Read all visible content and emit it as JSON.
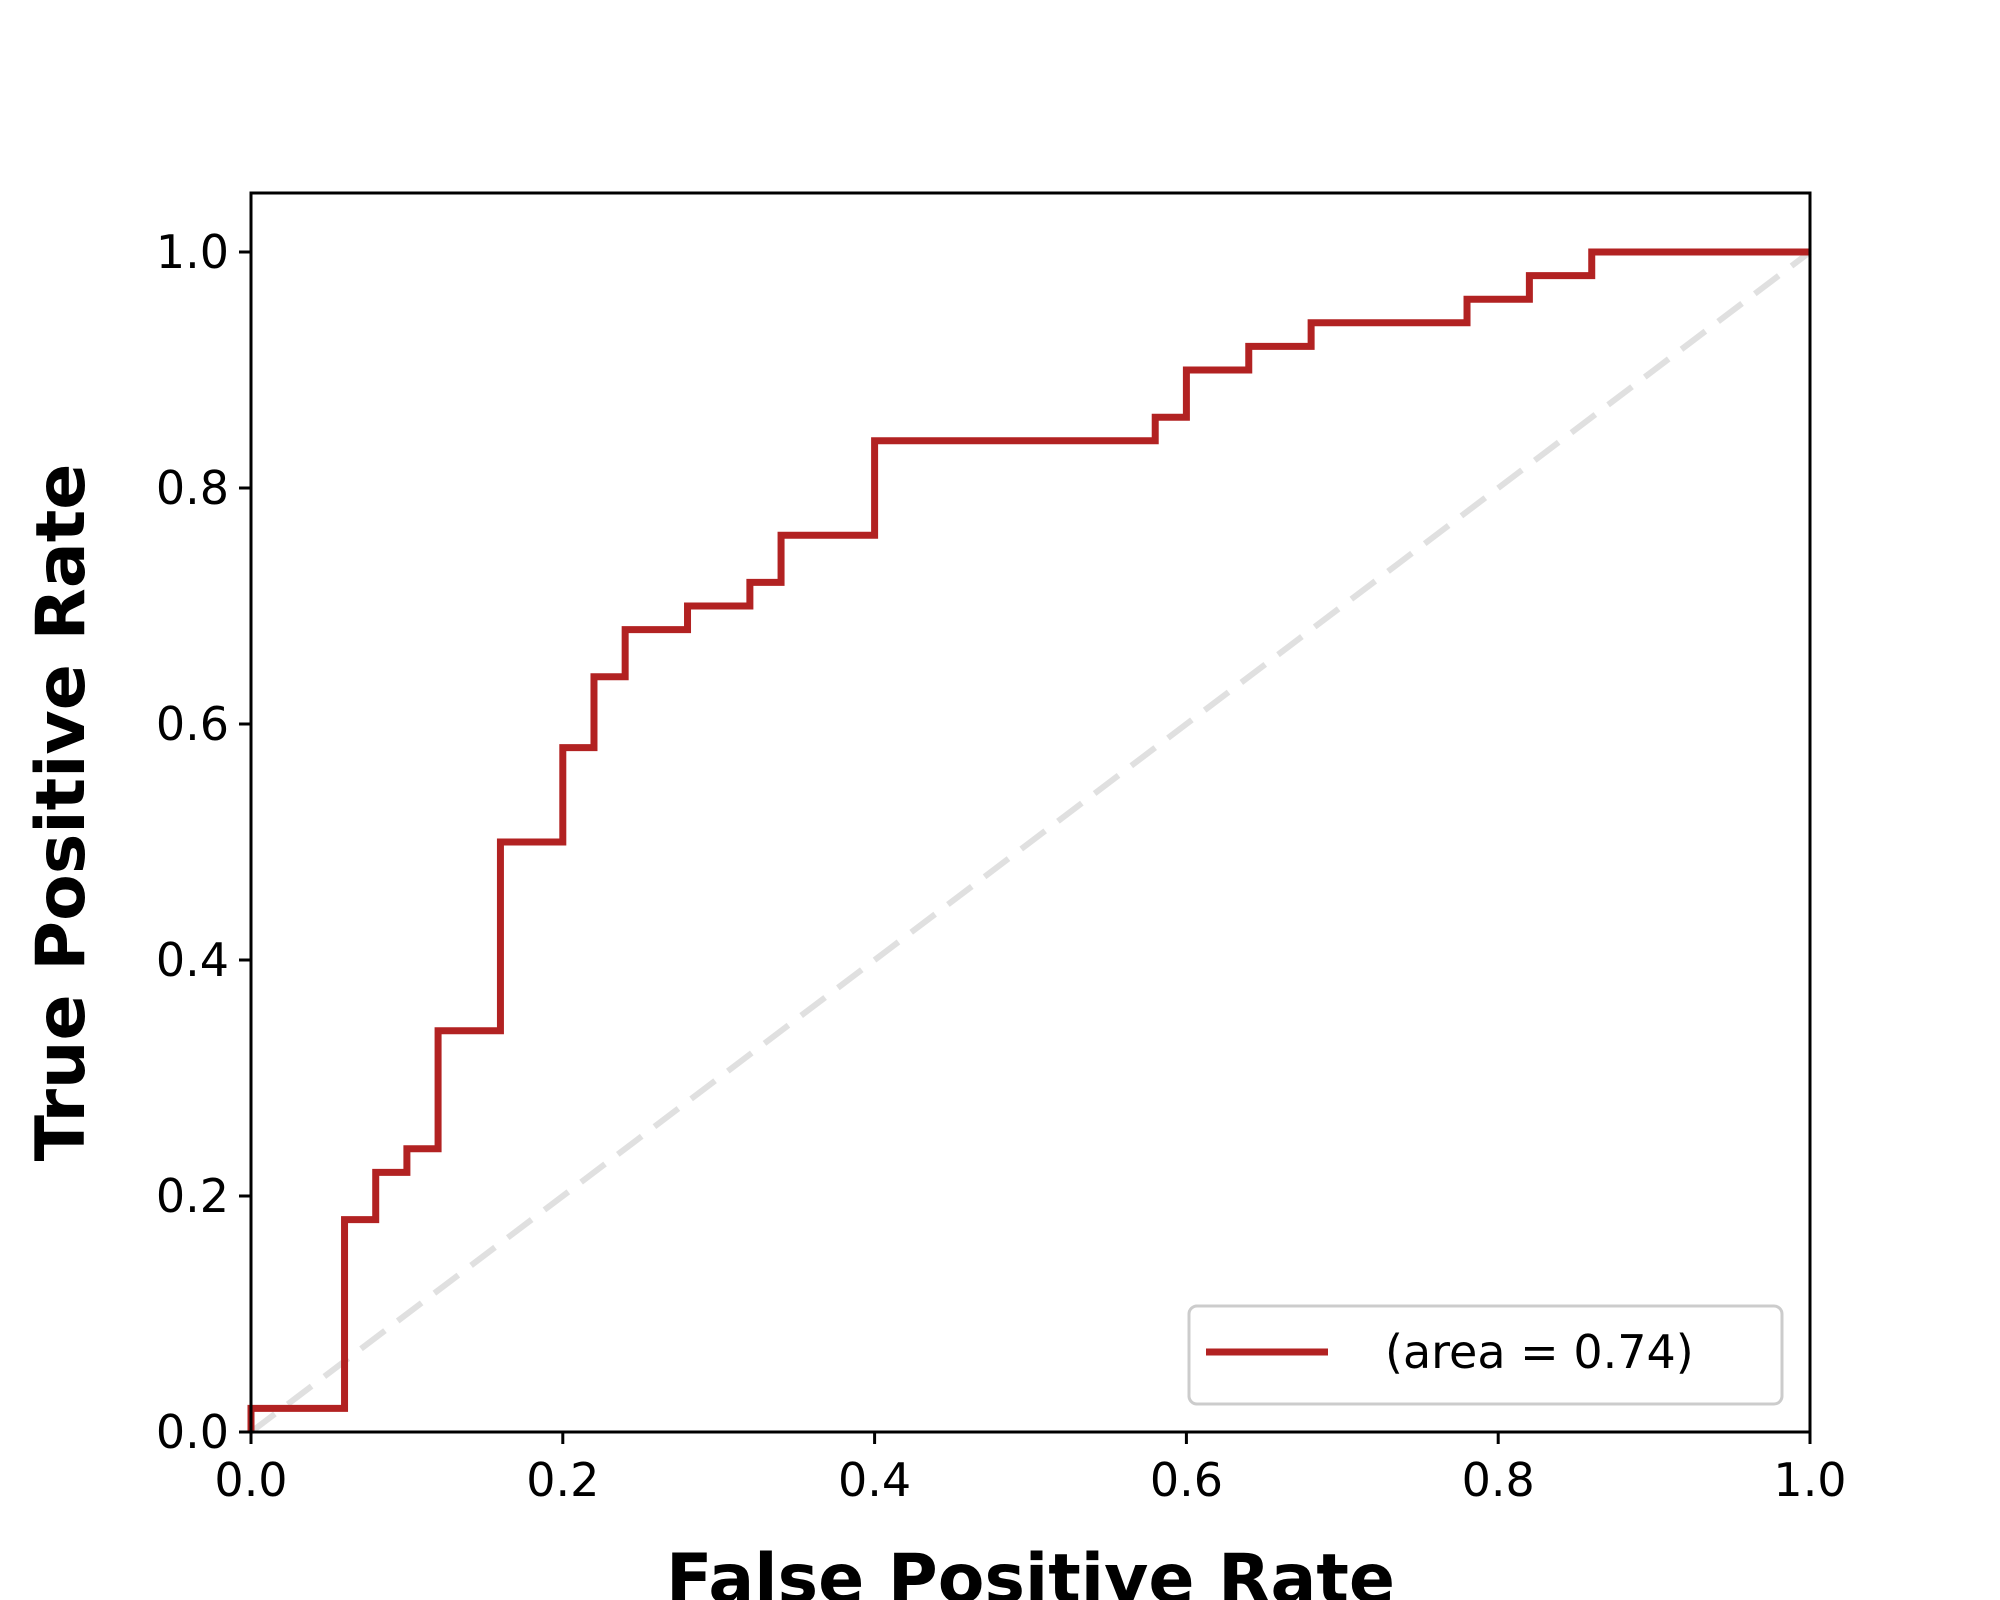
{
  "chart_data": {
    "type": "line",
    "title": "",
    "xlabel": "False Positive Rate",
    "ylabel": "True Positive Rate",
    "xlim": [
      0.0,
      1.0
    ],
    "ylim": [
      0.0,
      1.05
    ],
    "xticks": [
      "0.0",
      "0.2",
      "0.4",
      "0.6",
      "0.8",
      "1.0"
    ],
    "yticks": [
      "0.0",
      "0.2",
      "0.4",
      "0.6",
      "0.8",
      "1.0"
    ],
    "grid": false,
    "legend_position": "bottom-right",
    "series": [
      {
        "name": "(area = 0.74)",
        "color": "#b22222",
        "style": "step",
        "x": [
          0.0,
          0.0,
          0.06,
          0.06,
          0.08,
          0.08,
          0.1,
          0.1,
          0.12,
          0.12,
          0.16,
          0.16,
          0.2,
          0.2,
          0.22,
          0.22,
          0.24,
          0.24,
          0.28,
          0.28,
          0.32,
          0.32,
          0.34,
          0.34,
          0.4,
          0.4,
          0.58,
          0.58,
          0.6,
          0.6,
          0.64,
          0.64,
          0.68,
          0.68,
          0.78,
          0.78,
          0.82,
          0.82,
          0.86,
          0.86,
          1.0
        ],
        "y": [
          0.0,
          0.02,
          0.02,
          0.18,
          0.18,
          0.22,
          0.22,
          0.24,
          0.24,
          0.34,
          0.34,
          0.5,
          0.5,
          0.58,
          0.58,
          0.64,
          0.64,
          0.68,
          0.68,
          0.7,
          0.7,
          0.72,
          0.72,
          0.76,
          0.76,
          0.84,
          0.84,
          0.86,
          0.86,
          0.9,
          0.9,
          0.92,
          0.92,
          0.94,
          0.94,
          0.96,
          0.96,
          0.98,
          0.98,
          1.0,
          1.0
        ]
      }
    ],
    "reference_line": {
      "color": "#e0e0e0",
      "style": "dashed",
      "x": [
        0.0,
        1.0
      ],
      "y": [
        0.0,
        1.0
      ]
    }
  }
}
